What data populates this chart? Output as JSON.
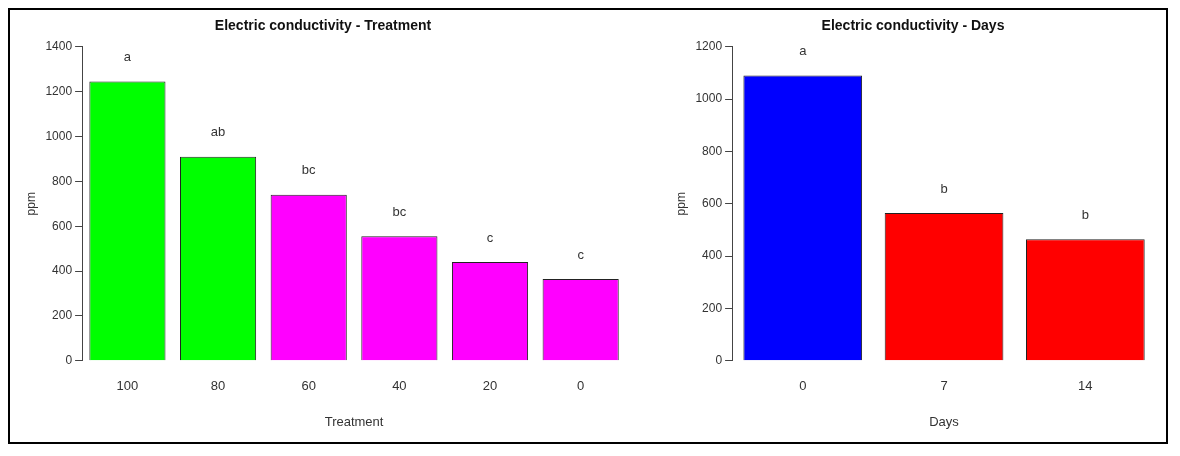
{
  "chart_data": [
    {
      "type": "bar",
      "title": "Electric conductivity - Treatment",
      "xlabel": "Treatment",
      "ylabel": "ppm",
      "categories": [
        "100",
        "80",
        "60",
        "40",
        "20",
        "0"
      ],
      "values": [
        1245,
        910,
        740,
        555,
        440,
        365
      ],
      "colors": [
        "#00ff00",
        "#00ff00",
        "#ff00ff",
        "#ff00ff",
        "#ff00ff",
        "#ff00ff"
      ],
      "ylim": [
        0,
        1400
      ],
      "yticks": [
        0,
        200,
        400,
        600,
        800,
        1000,
        1200,
        1400
      ],
      "annotations": [
        {
          "text": "a",
          "x": "100",
          "y": 1245
        },
        {
          "text": "ab",
          "x": "80",
          "y": 910
        },
        {
          "text": "bc",
          "x": "60",
          "y": 740
        },
        {
          "text": "bc",
          "x": "40",
          "y": 555
        },
        {
          "text": "c",
          "x": "20",
          "y": 440
        },
        {
          "text": "c",
          "x": "0",
          "y": 365
        }
      ]
    },
    {
      "type": "bar",
      "title": "Electric conductivity - Days",
      "xlabel": "Days",
      "ylabel": "ppm",
      "categories": [
        "0",
        "7",
        "14"
      ],
      "values": [
        1090,
        565,
        465
      ],
      "colors": [
        "#0000ff",
        "#ff0000",
        "#ff0000"
      ],
      "ylim": [
        0,
        1200
      ],
      "yticks": [
        0,
        200,
        400,
        600,
        800,
        1000,
        1200
      ],
      "annotations": [
        {
          "text": "a",
          "x": "0",
          "y": 1090
        },
        {
          "text": "b",
          "x": "7",
          "y": 565
        },
        {
          "text": "b",
          "x": "14",
          "y": 465
        }
      ]
    }
  ]
}
